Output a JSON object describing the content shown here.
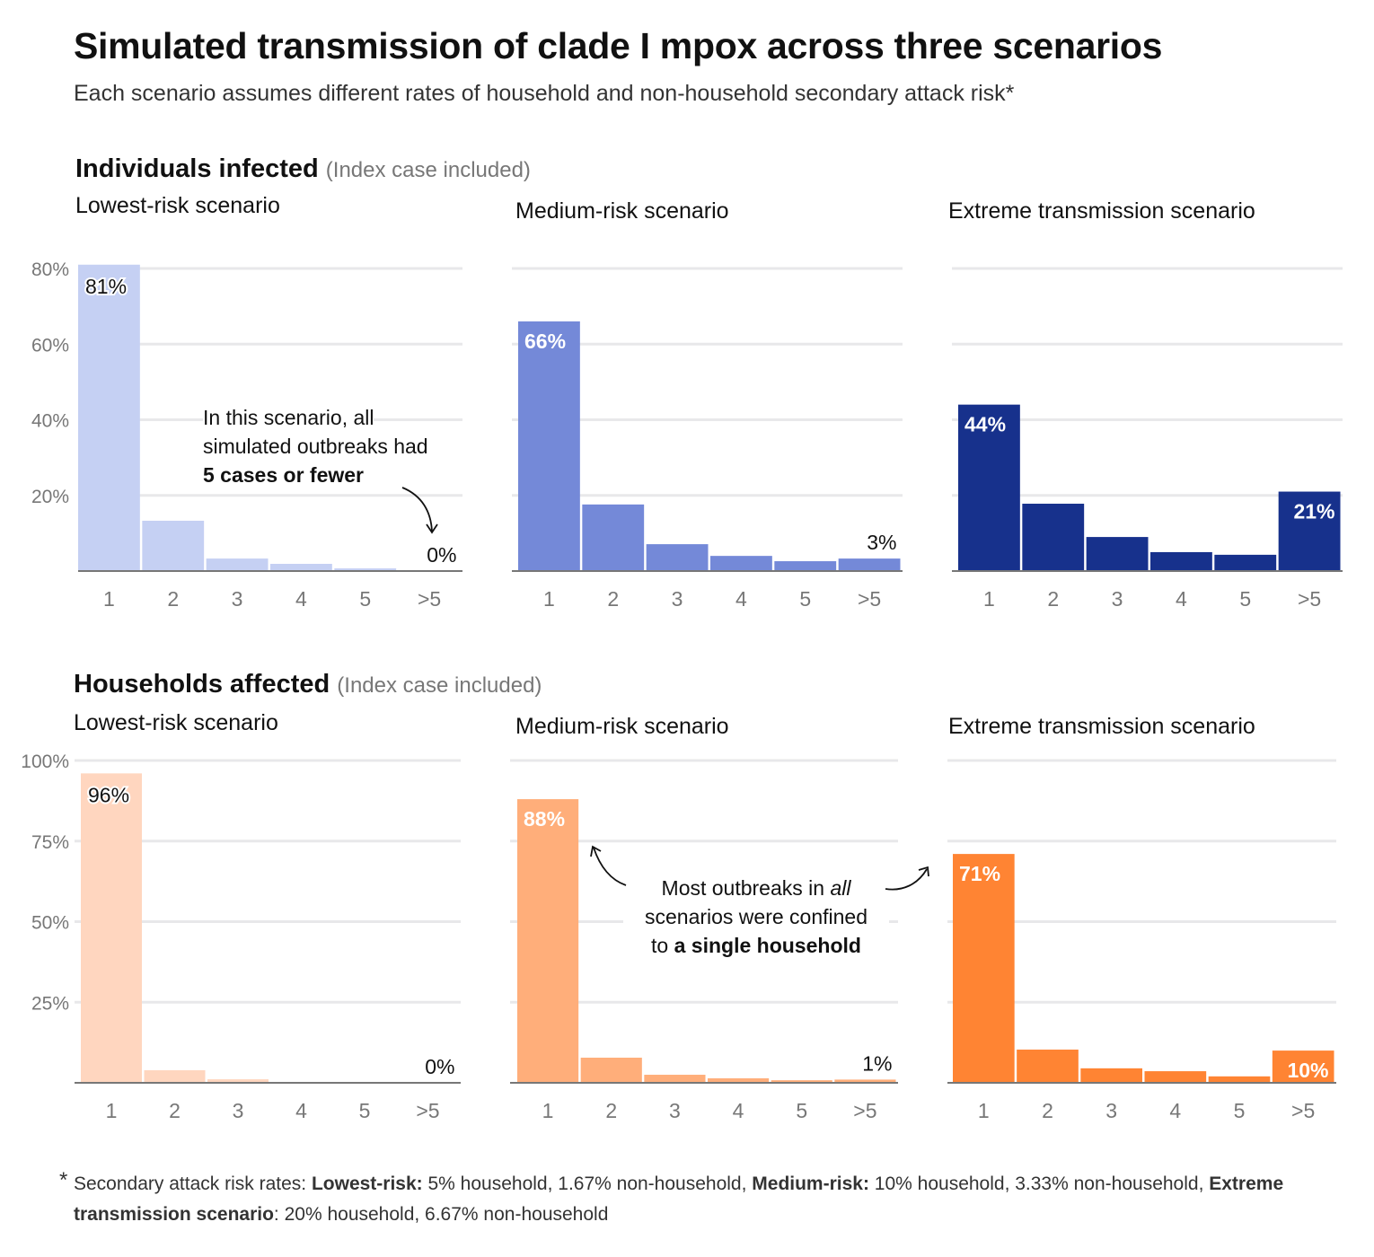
{
  "title": "Simulated transmission of clade I mpox across three scenarios",
  "subtitle": "Each scenario assumes different rates of household and non-household secondary attack risk*",
  "sections": [
    {
      "heading": "Individuals infected",
      "note": "(Index case included)"
    },
    {
      "heading": "Households affected",
      "note": "(Index case included)"
    }
  ],
  "annotations": {
    "individuals": {
      "line1": "In this scenario, all",
      "line2": "simulated outbreaks had",
      "bold": "5 cases or fewer"
    },
    "households": {
      "line1a": "Most outbreaks in ",
      "italic": "all",
      "line2": "scenarios were confined",
      "line3a": "to ",
      "bold": "a single household"
    }
  },
  "footnote": {
    "star": "*",
    "p1": "Secondary attack risk rates: ",
    "b1": "Lowest-risk:",
    "p2": " 5% household, 1.67% non-household, ",
    "b2": "Medium-risk:",
    "p3": "  10% household, 3.33% non-household, ",
    "b3": "Extreme transmission scenario",
    "p4": ": 20% household, 6.67% non-household"
  },
  "chart_data": [
    {
      "type": "bar",
      "group": "Individuals infected",
      "title": "Lowest-risk scenario",
      "categories": [
        "1",
        "2",
        "3",
        "4",
        "5",
        ">5"
      ],
      "values": [
        81,
        13.3,
        3.3,
        1.9,
        0.7,
        0
      ],
      "ylim": [
        0,
        80
      ],
      "yticks": [
        20,
        40,
        60,
        80
      ],
      "ytick_labels": [
        "20%",
        "40%",
        "60%",
        "80%"
      ],
      "grid": true,
      "color": "#c5d0f3",
      "data_labels": [
        {
          "index": 0,
          "text": "81%",
          "style": "halo"
        },
        {
          "index": 5,
          "text": "0%",
          "style": "above"
        }
      ]
    },
    {
      "type": "bar",
      "group": "Individuals infected",
      "title": "Medium-risk scenario",
      "categories": [
        "1",
        "2",
        "3",
        "4",
        "5",
        ">5"
      ],
      "values": [
        66,
        17.6,
        7.1,
        4.0,
        2.6,
        3.3
      ],
      "ylim": [
        0,
        80
      ],
      "yticks": [
        20,
        40,
        60,
        80
      ],
      "grid": true,
      "color": "#7489d8",
      "data_labels": [
        {
          "index": 0,
          "text": "66%",
          "style": "inside"
        },
        {
          "index": 5,
          "text": "3%",
          "style": "above"
        }
      ]
    },
    {
      "type": "bar",
      "group": "Individuals infected",
      "title": "Extreme transmission scenario",
      "categories": [
        "1",
        "2",
        "3",
        "4",
        "5",
        ">5"
      ],
      "values": [
        44,
        17.8,
        9.0,
        5.0,
        4.3,
        21
      ],
      "ylim": [
        0,
        80
      ],
      "yticks": [
        20,
        40,
        60,
        80
      ],
      "grid": true,
      "color": "#17318c",
      "data_labels": [
        {
          "index": 0,
          "text": "44%",
          "style": "inside"
        },
        {
          "index": 5,
          "text": "21%",
          "style": "inside"
        }
      ]
    },
    {
      "type": "bar",
      "group": "Households affected",
      "title": "Lowest-risk scenario",
      "categories": [
        "1",
        "2",
        "3",
        "4",
        "5",
        ">5"
      ],
      "values": [
        96,
        3.9,
        1.1,
        0,
        0,
        0
      ],
      "ylim": [
        0,
        100
      ],
      "yticks": [
        25,
        50,
        75,
        100
      ],
      "ytick_labels": [
        "25%",
        "50%",
        "75%",
        "100%"
      ],
      "grid": true,
      "color": "#ffd6bf",
      "data_labels": [
        {
          "index": 0,
          "text": "96%",
          "style": "halo"
        },
        {
          "index": 5,
          "text": "0%",
          "style": "above"
        }
      ]
    },
    {
      "type": "bar",
      "group": "Households affected",
      "title": "Medium-risk scenario",
      "categories": [
        "1",
        "2",
        "3",
        "4",
        "5",
        ">5"
      ],
      "values": [
        88,
        7.8,
        2.5,
        1.4,
        0.8,
        1
      ],
      "ylim": [
        0,
        100
      ],
      "yticks": [
        25,
        50,
        75,
        100
      ],
      "grid": true,
      "color": "#ffae7a",
      "data_labels": [
        {
          "index": 0,
          "text": "88%",
          "style": "inside"
        },
        {
          "index": 5,
          "text": "1%",
          "style": "above"
        }
      ]
    },
    {
      "type": "bar",
      "group": "Households affected",
      "title": "Extreme transmission scenario",
      "categories": [
        "1",
        "2",
        "3",
        "4",
        "5",
        ">5"
      ],
      "values": [
        71,
        10.3,
        4.5,
        3.6,
        2,
        10
      ],
      "ylim": [
        0,
        100
      ],
      "yticks": [
        25,
        50,
        75,
        100
      ],
      "grid": true,
      "color": "#ff8433",
      "data_labels": [
        {
          "index": 0,
          "text": "71%",
          "style": "inside"
        },
        {
          "index": 5,
          "text": "10%",
          "style": "inside"
        }
      ]
    }
  ]
}
